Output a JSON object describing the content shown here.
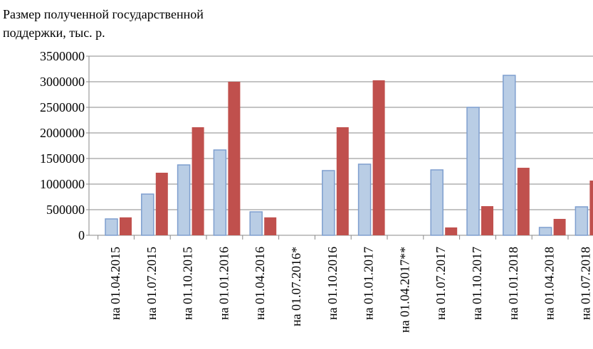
{
  "chart_data": {
    "type": "bar",
    "title": [
      "Размер полученной государственной",
      "поддержки, тыс. р."
    ],
    "categories": [
      "на 01.04.2015",
      "на 01.07.2015",
      "на 01.10.2015",
      "на 01.01.2016",
      "на 01.04.2016",
      "на 01.07.2016*",
      "на 01.10.2016",
      "на 01.01.2017",
      "на 01.04.2017**",
      "на 01.07.2017",
      "на 01.10.2017",
      "на 01.01.2018",
      "на 01.04.2018",
      "на 01.07.2018"
    ],
    "series": [
      {
        "color": "#b9cde5",
        "values": [
          320000,
          805000,
          1375000,
          1667000,
          458000,
          0,
          1264000,
          1389000,
          0,
          1278000,
          2500000,
          3125000,
          153000,
          556000
        ]
      },
      {
        "color": "#c0504d",
        "values": [
          350000,
          1222000,
          2111000,
          3000000,
          350000,
          0,
          2111000,
          3028000,
          0,
          153000,
          569000,
          1319000,
          320000,
          1069000
        ]
      }
    ],
    "ylim": [
      0,
      3500000
    ],
    "yticks": [
      0,
      500000,
      1000000,
      1500000,
      2000000,
      2500000,
      3000000,
      3500000
    ],
    "grid": true
  }
}
